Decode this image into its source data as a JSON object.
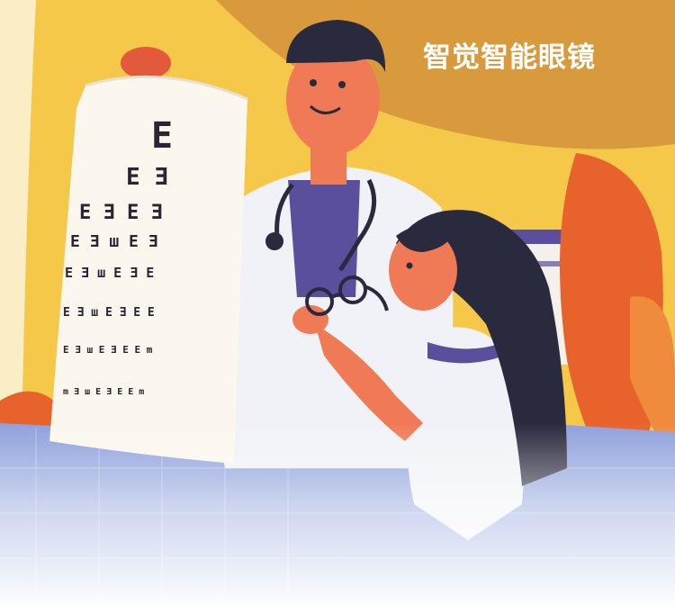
{
  "brand": {
    "title": "智觉智能眼镜"
  },
  "eye_chart": {
    "rows": [
      "E",
      "E Ǝ",
      "E Ǝ E Ǝ",
      "E Ǝ ш E Ǝ",
      "E Ǝ ш E Ǝ E",
      "E Ǝ ш E Ǝ E E",
      "E Ǝ ш E Ǝ E E m",
      "m Ǝ ш E Ǝ E E m"
    ]
  },
  "colors": {
    "background_yellow": "#f6c84a",
    "ochre_blob": "#d99a3e",
    "skin": "#ef7a55",
    "hair": "#2a2a3e",
    "shirt_purple": "#5a4f9c",
    "coat": "#f1f2f7",
    "orange_leaf": "#e8622c",
    "floor_blue": "#8ea1dc"
  }
}
